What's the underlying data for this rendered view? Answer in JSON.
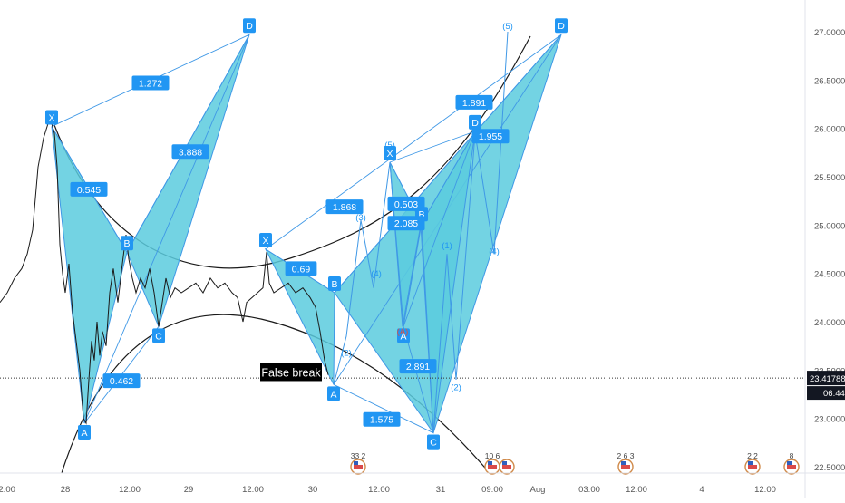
{
  "chart_data": {
    "type": "line",
    "title": "",
    "ylim": [
      22.35,
      27.25
    ],
    "y_ticks": [
      "22.50000",
      "23.00000",
      "23.50000",
      "24.00000",
      "24.50000",
      "25.00000",
      "25.50000",
      "26.00000",
      "26.50000",
      "27.00000"
    ],
    "x_ticks": [
      "12:00",
      "28",
      "12:00",
      "29",
      "12:00",
      "30",
      "12:00",
      "31",
      "09:00",
      "Aug",
      "03:00",
      "12:00",
      "4",
      "12:00"
    ],
    "current_price": "23.41788",
    "countdown": "06:44",
    "price_series": [
      [
        0,
        24.2
      ],
      [
        8,
        24.3
      ],
      [
        16,
        24.45
      ],
      [
        24,
        24.55
      ],
      [
        30,
        24.7
      ],
      [
        36,
        24.95
      ],
      [
        42,
        25.6
      ],
      [
        48,
        25.9
      ],
      [
        53,
        26.05
      ],
      [
        56,
        26.08
      ],
      [
        60,
        25.95
      ],
      [
        63,
        25.6
      ],
      [
        66,
        24.8
      ],
      [
        69,
        24.5
      ],
      [
        72,
        24.3
      ],
      [
        76,
        24.6
      ],
      [
        80,
        24.1
      ],
      [
        84,
        23.8
      ],
      [
        88,
        23.5
      ],
      [
        92,
        23.0
      ],
      [
        95,
        22.95
      ],
      [
        98,
        23.4
      ],
      [
        101,
        23.8
      ],
      [
        104,
        23.6
      ],
      [
        107,
        24.0
      ],
      [
        110,
        23.65
      ],
      [
        113,
        23.9
      ],
      [
        117,
        23.75
      ],
      [
        121,
        24.3
      ],
      [
        125,
        24.55
      ],
      [
        130,
        24.2
      ],
      [
        135,
        24.6
      ],
      [
        139,
        24.9
      ],
      [
        142,
        24.65
      ],
      [
        146,
        24.45
      ],
      [
        150,
        24.3
      ],
      [
        155,
        24.45
      ],
      [
        160,
        24.35
      ],
      [
        165,
        24.55
      ],
      [
        170,
        24.3
      ],
      [
        175,
        23.95
      ],
      [
        179,
        24.2
      ],
      [
        183,
        24.45
      ],
      [
        188,
        24.25
      ],
      [
        193,
        24.35
      ],
      [
        200,
        24.3
      ],
      [
        208,
        24.35
      ],
      [
        216,
        24.4
      ],
      [
        224,
        24.3
      ],
      [
        232,
        24.45
      ],
      [
        240,
        24.35
      ],
      [
        248,
        24.4
      ],
      [
        256,
        24.3
      ],
      [
        262,
        24.25
      ],
      [
        268,
        24.0
      ],
      [
        272,
        24.2
      ],
      [
        278,
        24.25
      ],
      [
        284,
        24.3
      ],
      [
        290,
        24.35
      ],
      [
        294,
        24.72
      ],
      [
        297,
        24.4
      ],
      [
        302,
        24.3
      ],
      [
        310,
        24.35
      ],
      [
        318,
        24.4
      ],
      [
        326,
        24.3
      ],
      [
        334,
        24.35
      ],
      [
        342,
        24.25
      ],
      [
        348,
        24.15
      ],
      [
        353,
        23.9
      ],
      [
        358,
        23.6
      ],
      [
        362,
        23.45
      ]
    ],
    "patterns": [
      {
        "points": [
          {
            "label": "X",
            "x": 57,
            "y": 26.02
          },
          {
            "label": "A",
            "x": 93,
            "y": 22.95
          },
          {
            "label": "B",
            "x": 140,
            "y": 24.72
          },
          {
            "label": "C",
            "x": 175,
            "y": 23.95
          },
          {
            "label": "D",
            "x": 275,
            "y": 26.97
          }
        ],
        "ratios": [
          {
            "text": "0.545",
            "x": 98,
            "y": 25.37
          },
          {
            "text": "0.462",
            "x": 134,
            "y": 23.39
          },
          {
            "text": "3.888",
            "x": 210,
            "y": 25.76
          },
          {
            "text": "1.272",
            "x": 166,
            "y": 26.47
          }
        ]
      },
      {
        "points": [
          {
            "label": "X",
            "x": 293,
            "y": 24.75
          },
          {
            "label": "A",
            "x": 368,
            "y": 23.35
          },
          {
            "label": "B",
            "x": 369,
            "y": 24.3
          },
          {
            "label": "C",
            "x": 478,
            "y": 22.85
          },
          {
            "label": "D",
            "x": 619,
            "y": 26.97
          }
        ],
        "ratios": [
          {
            "text": "0.69",
            "x": 332,
            "y": 24.55
          },
          {
            "text": "1.575",
            "x": 421,
            "y": 22.99
          },
          {
            "text": "1.868",
            "x": 380,
            "y": 25.19
          },
          {
            "text": "1.891",
            "x": 523,
            "y": 26.27
          }
        ]
      },
      {
        "points": [
          {
            "label": "X",
            "x": 430,
            "y": 25.65
          },
          {
            "label": "A",
            "x": 445,
            "y": 23.95
          },
          {
            "label": "B",
            "x": 465,
            "y": 25.02
          },
          {
            "label": "C",
            "x": 478,
            "y": 22.85
          },
          {
            "label": "D",
            "x": 524,
            "y": 25.97
          }
        ],
        "ratios": [
          {
            "text": "0.503",
            "x": 448,
            "y": 25.22
          },
          {
            "text": "2.085",
            "x": 448,
            "y": 25.02
          },
          {
            "text": "2.891",
            "x": 461,
            "y": 23.54
          },
          {
            "text": "1.955",
            "x": 541,
            "y": 25.92
          }
        ]
      }
    ],
    "wave_labels": [
      {
        "text": "(5)",
        "x": 430,
        "y": 25.8
      },
      {
        "text": "(3)",
        "x": 398,
        "y": 25.05
      },
      {
        "text": "(4)",
        "x": 415,
        "y": 24.47
      },
      {
        "text": "(2)",
        "x": 382,
        "y": 23.65
      },
      {
        "text": "(A)",
        "x": 444,
        "y": 23.87
      },
      {
        "text": "(1)",
        "x": 493,
        "y": 24.76
      },
      {
        "text": "(2)",
        "x": 503,
        "y": 23.29
      },
      {
        "text": "(4)",
        "x": 545,
        "y": 24.7
      },
      {
        "text": "(5)",
        "x": 560,
        "y": 27.03
      }
    ],
    "annotation": {
      "text": "False break",
      "x": 321,
      "y": 23.48
    },
    "event_markers": [
      {
        "x": 395,
        "text": "33 2"
      },
      {
        "x": 543,
        "text": "10 6"
      },
      {
        "x": 559,
        "text": ""
      },
      {
        "x": 690,
        "text": "2 6 3"
      },
      {
        "x": 830,
        "text": "2 2"
      },
      {
        "x": 873,
        "text": "8"
      }
    ]
  },
  "colors": {
    "pattern_fill": "#5bcbde",
    "pattern_stroke": "#3f98e6",
    "label_bg": "#2196f3",
    "price_line": "#1a1a1a",
    "arc": "#1a1a1a",
    "current_tag": "#131722",
    "wave_text": "#2196f3",
    "wave_red": "#e0503f",
    "axis_text": "#555555",
    "border": "#e0e3eb"
  }
}
